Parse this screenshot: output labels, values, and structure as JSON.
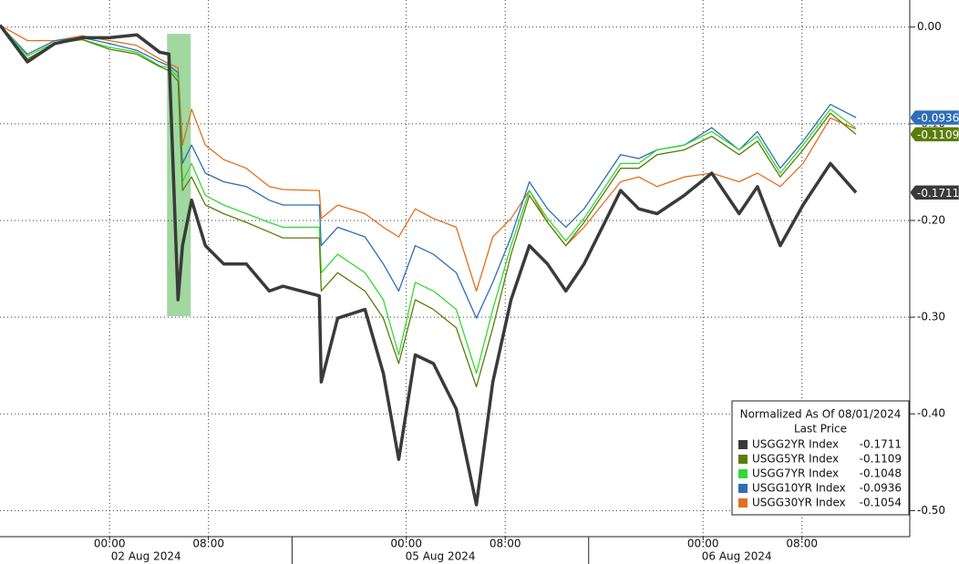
{
  "chart_data": {
    "type": "line",
    "x": [
      -8.86,
      -6.64,
      -4.43,
      -2.21,
      0,
      2.21,
      4.06,
      4.8,
      5.54,
      5.9,
      6.64,
      7.75,
      9.23,
      11.07,
      12.92,
      14.02,
      16.97,
      17.12,
      18.45,
      20.66,
      22.14,
      23.39,
      24.72,
      26.2,
      28.04,
      29.67,
      31.0,
      32.47,
      33.95,
      35.42,
      36.9,
      38.38,
      41.33,
      42.8,
      44.28,
      46.49,
      48.71,
      50.92,
      52.4,
      54.24,
      56.09,
      58.3,
      60.37
    ],
    "series": [
      {
        "name": "USGG2YR Index",
        "color": "#3a3a3a",
        "width": 3.5,
        "last_price": -0.1711,
        "tag": true,
        "values": [
          0.002,
          -0.036,
          -0.017,
          -0.011,
          -0.011,
          -0.008,
          -0.026,
          -0.028,
          -0.282,
          -0.226,
          -0.179,
          -0.226,
          -0.245,
          -0.245,
          -0.273,
          -0.268,
          -0.278,
          -0.367,
          -0.301,
          -0.292,
          -0.358,
          -0.447,
          -0.339,
          -0.348,
          -0.395,
          -0.494,
          -0.367,
          -0.282,
          -0.226,
          -0.245,
          -0.273,
          -0.245,
          -0.169,
          -0.188,
          -0.193,
          -0.174,
          -0.151,
          -0.193,
          -0.165,
          -0.226,
          -0.184,
          -0.141,
          -0.1711
        ]
      },
      {
        "name": "USGG5YR Index",
        "color": "#5a7d0a",
        "width": 1.3,
        "last_price": -0.1109,
        "tag": true,
        "values": [
          0.002,
          -0.033,
          -0.017,
          -0.013,
          -0.023,
          -0.028,
          -0.041,
          -0.045,
          -0.056,
          -0.169,
          -0.155,
          -0.184,
          -0.193,
          -0.202,
          -0.212,
          -0.218,
          -0.218,
          -0.273,
          -0.254,
          -0.273,
          -0.301,
          -0.348,
          -0.282,
          -0.292,
          -0.311,
          -0.372,
          -0.311,
          -0.235,
          -0.174,
          -0.202,
          -0.226,
          -0.202,
          -0.146,
          -0.146,
          -0.132,
          -0.127,
          -0.113,
          -0.132,
          -0.118,
          -0.155,
          -0.127,
          -0.089,
          -0.1109
        ]
      },
      {
        "name": "USGG7YR Index",
        "color": "#35d835",
        "width": 1.3,
        "last_price": -0.1048,
        "tag": false,
        "values": [
          0.002,
          -0.03,
          -0.016,
          -0.013,
          -0.021,
          -0.026,
          -0.04,
          -0.042,
          -0.052,
          -0.16,
          -0.141,
          -0.174,
          -0.184,
          -0.193,
          -0.202,
          -0.207,
          -0.207,
          -0.254,
          -0.235,
          -0.254,
          -0.282,
          -0.339,
          -0.264,
          -0.273,
          -0.292,
          -0.358,
          -0.292,
          -0.226,
          -0.169,
          -0.198,
          -0.221,
          -0.198,
          -0.141,
          -0.141,
          -0.127,
          -0.122,
          -0.108,
          -0.127,
          -0.113,
          -0.151,
          -0.122,
          -0.085,
          -0.1048
        ]
      },
      {
        "name": "USGG10YR Index",
        "color": "#2f6db5",
        "width": 1.3,
        "last_price": -0.0936,
        "tag": true,
        "values": [
          0.002,
          -0.028,
          -0.014,
          -0.011,
          -0.017,
          -0.024,
          -0.036,
          -0.04,
          -0.047,
          -0.141,
          -0.122,
          -0.151,
          -0.16,
          -0.165,
          -0.179,
          -0.184,
          -0.184,
          -0.226,
          -0.207,
          -0.217,
          -0.245,
          -0.273,
          -0.226,
          -0.235,
          -0.254,
          -0.301,
          -0.264,
          -0.217,
          -0.16,
          -0.188,
          -0.207,
          -0.188,
          -0.132,
          -0.136,
          -0.127,
          -0.122,
          -0.104,
          -0.127,
          -0.108,
          -0.146,
          -0.118,
          -0.08,
          -0.0936
        ]
      },
      {
        "name": "USGG30YR Index",
        "color": "#e0701e",
        "width": 1.3,
        "last_price": -0.1054,
        "tag": false,
        "values": [
          0.002,
          -0.014,
          -0.014,
          -0.009,
          -0.014,
          -0.019,
          -0.033,
          -0.038,
          -0.042,
          -0.122,
          -0.085,
          -0.122,
          -0.137,
          -0.146,
          -0.165,
          -0.168,
          -0.169,
          -0.198,
          -0.184,
          -0.193,
          -0.207,
          -0.217,
          -0.188,
          -0.198,
          -0.207,
          -0.273,
          -0.217,
          -0.198,
          -0.169,
          -0.202,
          -0.226,
          -0.207,
          -0.16,
          -0.155,
          -0.165,
          -0.155,
          -0.151,
          -0.16,
          -0.151,
          -0.165,
          -0.141,
          -0.094,
          -0.1054
        ]
      }
    ],
    "xlim": [
      -8.86,
      64.72
    ],
    "xticks": [
      {
        "value": 0,
        "label": "00:00"
      },
      {
        "value": 8,
        "label": "08:00"
      },
      {
        "value": 24,
        "label": "00:00"
      },
      {
        "value": 32,
        "label": "08:00"
      },
      {
        "value": 48,
        "label": "00:00"
      },
      {
        "value": 56,
        "label": "08:00"
      }
    ],
    "sessions": [
      {
        "label": "02 Aug 2024",
        "start": -8.86,
        "end": 14.76
      },
      {
        "label": "05 Aug 2024",
        "start": 14.76,
        "end": 38.75
      },
      {
        "label": "06 Aug 2024",
        "start": 38.75,
        "end": 62.7
      }
    ],
    "ylim": [
      -0.527,
      0.028
    ],
    "yticks": [
      {
        "value": 0,
        "label": "0.00"
      },
      {
        "value": -0.1,
        "label": "-0.10"
      },
      {
        "value": -0.2,
        "label": "-0.20"
      },
      {
        "value": -0.3,
        "label": "-0.30"
      },
      {
        "value": -0.4,
        "label": "-0.40"
      },
      {
        "value": -0.5,
        "label": "-0.50"
      }
    ],
    "highlight": {
      "x": [
        4.65,
        6.57
      ],
      "y": [
        -0.299,
        -0.007
      ],
      "color": "#8fd18f"
    },
    "grid": true,
    "legend": {
      "title": "Normalized As Of 08/01/2024",
      "subtitle": "Last Price",
      "position": "lower right"
    }
  }
}
